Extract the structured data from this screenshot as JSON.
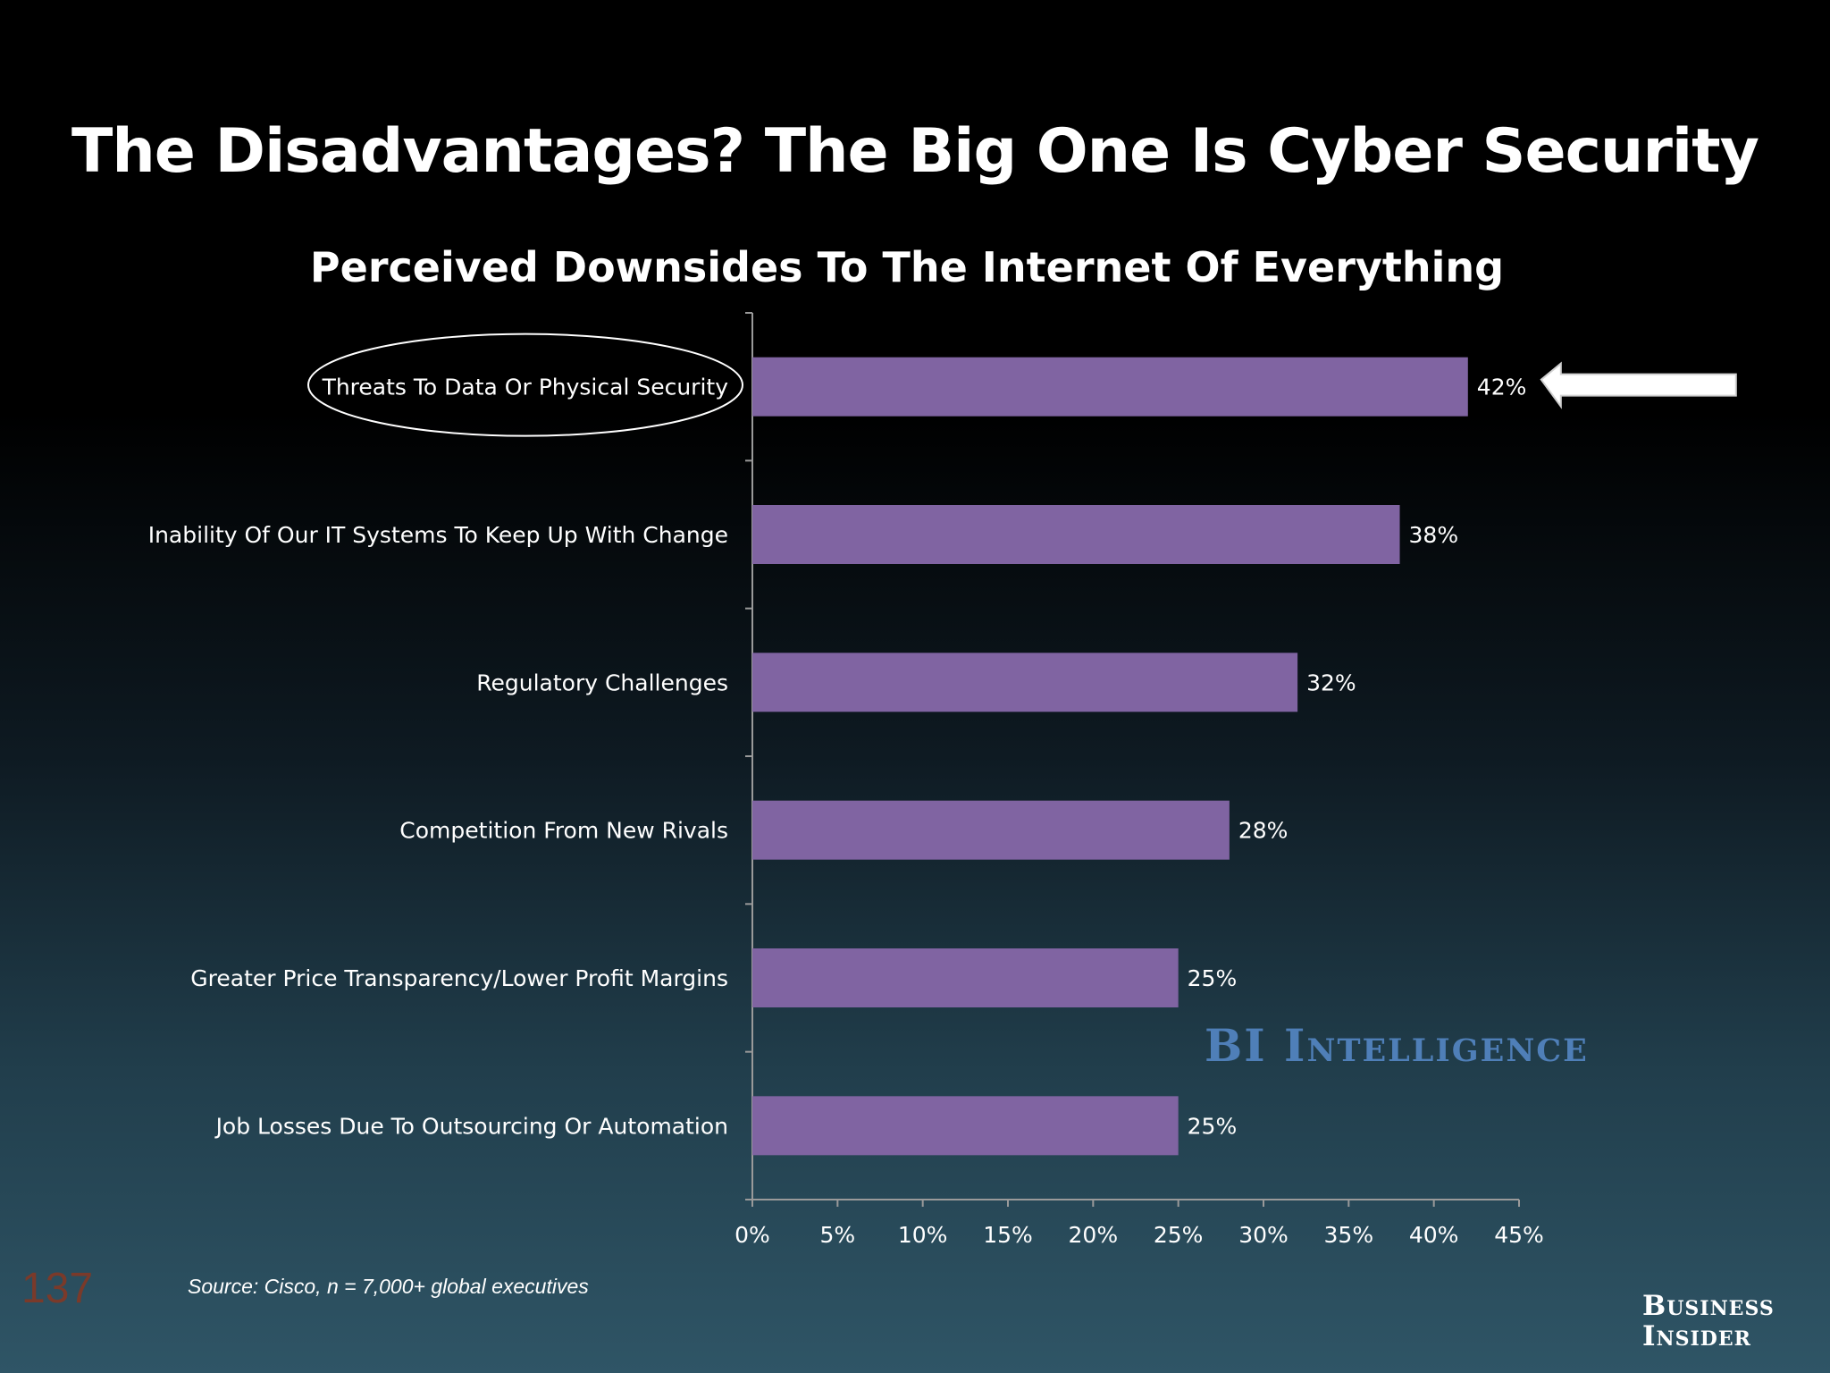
{
  "slide_title": "The Disadvantages? The Big One Is Cyber Security",
  "page_number": "137",
  "source": "Source: Cisco, n = 7,000+ global executives",
  "watermark": "BI Intelligence",
  "brand": {
    "line1": "Business",
    "line2": "Insider"
  },
  "colors": {
    "bar": "#8064a2",
    "text": "#ffffff",
    "axis": "#9a9a9a"
  },
  "chart_data": {
    "type": "bar",
    "orientation": "horizontal",
    "title": "Perceived Downsides To The Internet Of Everything",
    "categories": [
      "Threats To Data Or Physical Security",
      "Inability Of Our IT Systems To Keep Up With Change",
      "Regulatory Challenges",
      "Competition From New Rivals",
      "Greater Price Transparency/Lower Profit Margins",
      "Job Losses Due To Outsourcing Or Automation"
    ],
    "values": [
      42,
      38,
      32,
      28,
      25,
      25
    ],
    "value_labels": [
      "42%",
      "38%",
      "32%",
      "28%",
      "25%",
      "25%"
    ],
    "xlim": [
      0,
      45
    ],
    "xticks": [
      0,
      5,
      10,
      15,
      20,
      25,
      30,
      35,
      40,
      45
    ],
    "xtick_labels": [
      "0%",
      "5%",
      "10%",
      "15%",
      "20%",
      "25%",
      "30%",
      "35%",
      "40%",
      "45%"
    ],
    "highlight_index": 0,
    "xlabel": "",
    "ylabel": ""
  }
}
